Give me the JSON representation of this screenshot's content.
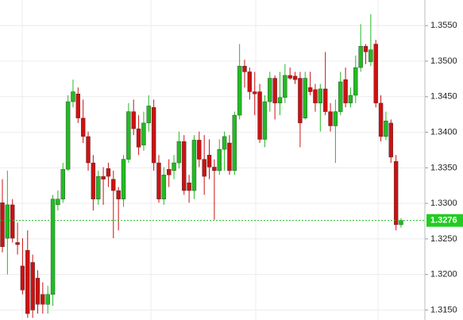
{
  "chart_data": {
    "type": "candlestick",
    "up_color": "#22bb22",
    "down_color": "#cc1111",
    "grid": true,
    "open": [
      1.3301,
      1.3251,
      1.3298,
      1.3245,
      1.3212,
      1.3234,
      1.3217,
      1.3195,
      1.3172,
      1.3158,
      1.3172,
      1.3298,
      1.3306,
      1.3348,
      1.3443,
      1.3454,
      1.342,
      1.3394,
      1.3357,
      1.3306,
      1.3338,
      1.3349,
      1.3334,
      1.3318,
      1.3306,
      1.3362,
      1.3429,
      1.3405,
      1.3382,
      1.3413,
      1.3435,
      1.3357,
      1.3306,
      1.3348,
      1.3346,
      1.3357,
      1.3387,
      1.3329,
      1.3318,
      1.3389,
      1.3362,
      1.3368,
      1.3351,
      1.3346,
      1.3376,
      1.3385,
      1.3346,
      1.3424,
      1.3493,
      1.3485,
      1.3457,
      1.3457,
      1.339,
      1.3443,
      1.3476,
      1.3441,
      1.3449,
      1.348,
      1.3479,
      1.3476,
      1.342,
      1.3463,
      1.346,
      1.3441,
      1.3461,
      1.3429,
      1.3409,
      1.3429,
      1.3474,
      1.3441,
      1.3452,
      1.3491,
      1.3521,
      1.3499,
      1.3524,
      1.3441,
      1.3394,
      1.3413,
      1.3359,
      1.327
    ],
    "high": [
      1.3334,
      1.3346,
      1.3306,
      1.3273,
      1.3251,
      1.3262,
      1.3228,
      1.3206,
      1.3189,
      1.3184,
      1.3312,
      1.3318,
      1.3357,
      1.3452,
      1.3474,
      1.3463,
      1.3446,
      1.3401,
      1.3368,
      1.3346,
      1.3351,
      1.3357,
      1.3346,
      1.3323,
      1.3368,
      1.3441,
      1.3446,
      1.3424,
      1.3429,
      1.3452,
      1.3446,
      1.3368,
      1.3351,
      1.3362,
      1.3368,
      1.3401,
      1.3396,
      1.334,
      1.3396,
      1.3401,
      1.3396,
      1.339,
      1.3362,
      1.339,
      1.3401,
      1.3396,
      1.3429,
      1.3524,
      1.3502,
      1.3491,
      1.3485,
      1.3468,
      1.3452,
      1.3485,
      1.348,
      1.3485,
      1.3496,
      1.3491,
      1.3485,
      1.3485,
      1.3485,
      1.3485,
      1.3468,
      1.3468,
      1.3513,
      1.3441,
      1.3446,
      1.3485,
      1.3491,
      1.3463,
      1.3508,
      1.3552,
      1.3524,
      1.3566,
      1.353,
      1.3452,
      1.3429,
      1.3418,
      1.3368,
      1.3279
    ],
    "low": [
      1.3231,
      1.32,
      1.3245,
      1.3228,
      1.3172,
      1.3139,
      1.3139,
      1.3145,
      1.3145,
      1.3145,
      1.3156,
      1.329,
      1.3301,
      1.3346,
      1.3435,
      1.3413,
      1.3385,
      1.3346,
      1.329,
      1.3298,
      1.3298,
      1.3323,
      1.3251,
      1.3262,
      1.3295,
      1.3357,
      1.3396,
      1.3368,
      1.3374,
      1.3401,
      1.3346,
      1.3301,
      1.3298,
      1.3323,
      1.3334,
      1.3349,
      1.3312,
      1.3301,
      1.3306,
      1.3351,
      1.3312,
      1.3334,
      1.3277,
      1.334,
      1.3346,
      1.334,
      1.334,
      1.3418,
      1.3463,
      1.3446,
      1.3424,
      1.3385,
      1.3379,
      1.3429,
      1.3418,
      1.3424,
      1.3441,
      1.3474,
      1.3468,
      1.3379,
      1.3418,
      1.3452,
      1.3429,
      1.3401,
      1.3424,
      1.3401,
      1.3357,
      1.3424,
      1.3435,
      1.3435,
      1.3441,
      1.3485,
      1.3496,
      1.3493,
      1.3435,
      1.3387,
      1.3389,
      1.3357,
      1.3262,
      1.3266
    ],
    "close": [
      1.3239,
      1.3298,
      1.3251,
      1.3242,
      1.3178,
      1.3145,
      1.315,
      1.3158,
      1.3158,
      1.3172,
      1.3306,
      1.3306,
      1.3348,
      1.3443,
      1.3457,
      1.342,
      1.3394,
      1.3357,
      1.3306,
      1.3338,
      1.3334,
      1.3338,
      1.3318,
      1.3306,
      1.3362,
      1.3429,
      1.3405,
      1.3379,
      1.3413,
      1.3437,
      1.3357,
      1.3306,
      1.334,
      1.334,
      1.3357,
      1.3387,
      1.3318,
      1.3318,
      1.3389,
      1.3362,
      1.3338,
      1.3351,
      1.3346,
      1.3376,
      1.3394,
      1.3346,
      1.3424,
      1.3493,
      1.3485,
      1.3457,
      1.3454,
      1.339,
      1.3443,
      1.3476,
      1.3441,
      1.3449,
      1.348,
      1.3476,
      1.3474,
      1.3413,
      1.3476,
      1.3457,
      1.3441,
      1.3461,
      1.3429,
      1.3409,
      1.3429,
      1.3471,
      1.3441,
      1.3452,
      1.3491,
      1.3521,
      1.3513,
      1.3516,
      1.3441,
      1.3394,
      1.3416,
      1.3365,
      1.327,
      1.3276
    ],
    "ylim": [
      1.3136,
      1.3586
    ],
    "yticks": [
      {
        "value": 1.355,
        "label": "1.3550"
      },
      {
        "value": 1.35,
        "label": "1.3500"
      },
      {
        "value": 1.345,
        "label": "1.3450"
      },
      {
        "value": 1.34,
        "label": "1.3400"
      },
      {
        "value": 1.335,
        "label": "1.3350"
      },
      {
        "value": 1.33,
        "label": "1.3300"
      },
      {
        "value": 1.325,
        "label": "1.3250"
      },
      {
        "value": 1.32,
        "label": "1.3200"
      },
      {
        "value": 1.315,
        "label": "1.3150"
      }
    ],
    "current_price": {
      "value": 1.3276,
      "label": "1.3276"
    }
  }
}
